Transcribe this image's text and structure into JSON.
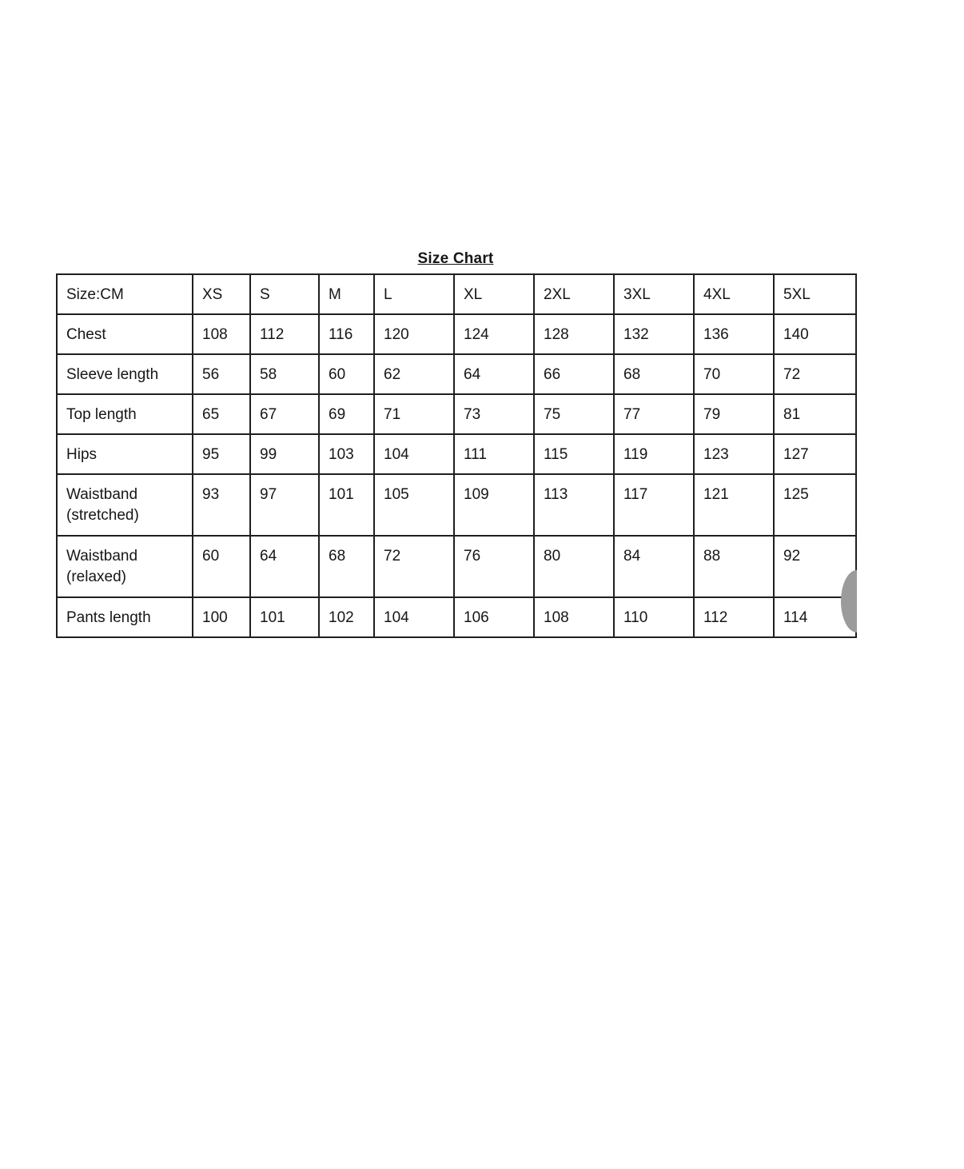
{
  "title": "Size Chart",
  "table": {
    "unit_header": "Size:CM",
    "sizes": [
      "XS",
      "S",
      "M",
      "L",
      "XL",
      "2XL",
      "3XL",
      "4XL",
      "5XL"
    ],
    "rows": [
      {
        "label": "Chest",
        "values": [
          "108",
          "112",
          "116",
          "120",
          "124",
          "128",
          "132",
          "136",
          "140"
        ]
      },
      {
        "label": "Sleeve length",
        "values": [
          "56",
          "58",
          "60",
          "62",
          "64",
          "66",
          "68",
          "70",
          "72"
        ]
      },
      {
        "label": "Top length",
        "values": [
          "65",
          "67",
          "69",
          "71",
          "73",
          "75",
          "77",
          "79",
          "81"
        ]
      },
      {
        "label": "Hips",
        "values": [
          "95",
          "99",
          "103",
          "104",
          "111",
          "115",
          "119",
          "123",
          "127"
        ]
      },
      {
        "label": "Waistband (stretched)",
        "values": [
          "93",
          "97",
          "101",
          "105",
          "109",
          "113",
          "117",
          "121",
          "125"
        ]
      },
      {
        "label": "Waistband (relaxed)",
        "values": [
          "60",
          "64",
          "68",
          "72",
          "76",
          "80",
          "84",
          "88",
          "92"
        ]
      },
      {
        "label": "Pants length",
        "values": [
          "100",
          "101",
          "102",
          "104",
          "106",
          "108",
          "110",
          "112",
          "114"
        ]
      }
    ]
  },
  "icons": {
    "edge_handle": "half-circle-drag-handle"
  },
  "colors": {
    "background": "#ffffff",
    "border": "#1f1f1f",
    "text": "#161616",
    "handle": "#9b9b9b"
  }
}
